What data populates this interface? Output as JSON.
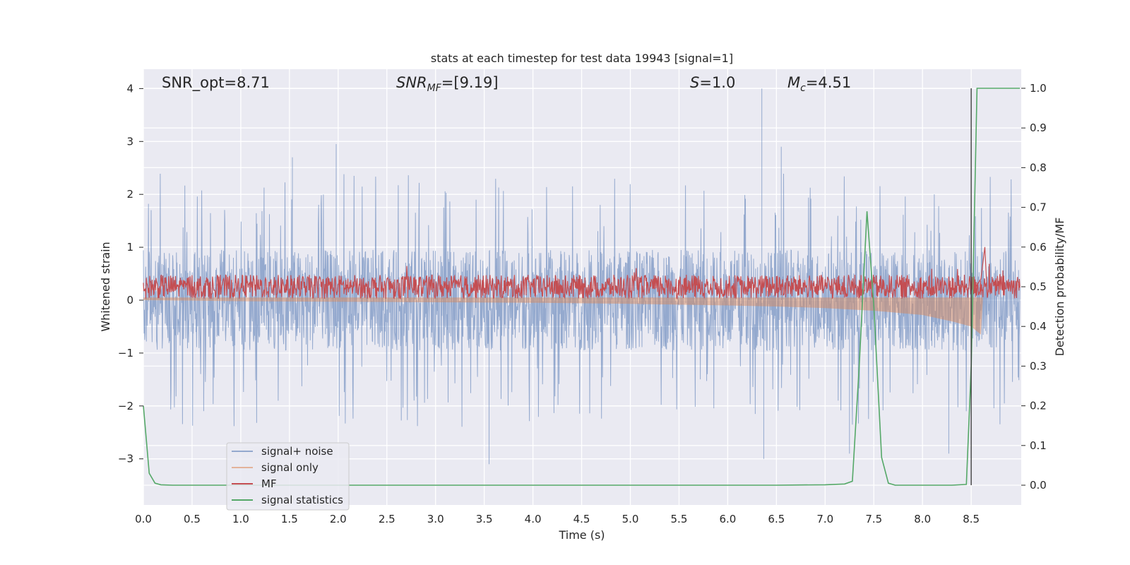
{
  "chart_data": {
    "type": "line",
    "title": "stats at each timestep for test data 19943 [signal=1]",
    "xlabel": "Time (s)",
    "ylabel_left": "Whitened strain",
    "ylabel_right": "Detection probability/MF",
    "xlim": [
      0,
      9
    ],
    "ylim_left": [
      -3.85,
      4.35
    ],
    "ylim_right": [
      -0.05,
      1.04
    ],
    "x_ticks": [
      "0.0",
      "0.5",
      "1.0",
      "1.5",
      "2.0",
      "2.5",
      "3.0",
      "3.5",
      "4.0",
      "4.5",
      "5.0",
      "5.5",
      "6.0",
      "6.5",
      "7.0",
      "7.5",
      "8.0",
      "8.5"
    ],
    "x_tick_values": [
      0,
      0.5,
      1,
      1.5,
      2,
      2.5,
      3,
      3.5,
      4,
      4.5,
      5,
      5.5,
      6,
      6.5,
      7,
      7.5,
      8,
      8.5
    ],
    "y_ticks_left": [
      "4",
      "3",
      "2",
      "1",
      "0",
      "−1",
      "−2",
      "−3"
    ],
    "y_tick_values_left": [
      4,
      3,
      2,
      1,
      0,
      -1,
      -2,
      -3
    ],
    "y_ticks_right": [
      "1.0",
      "0.9",
      "0.8",
      "0.7",
      "0.6",
      "0.5",
      "0.4",
      "0.3",
      "0.2",
      "0.1",
      "0.0"
    ],
    "y_tick_values_right": [
      1.0,
      0.9,
      0.8,
      0.7,
      0.6,
      0.5,
      0.4,
      0.3,
      0.2,
      0.1,
      0.0
    ],
    "grid": true,
    "legend_position": "lower-left",
    "annotations": {
      "snr_opt": "SNR_opt=8.71",
      "snr_mf_main": "SNR",
      "snr_mf_sub": "MF",
      "snr_mf_rest": "=[9.19]",
      "s_main": "S",
      "s_rest": "=1.0",
      "mc_main": "M",
      "mc_sub": "c",
      "mc_rest": "=4.51"
    },
    "series": [
      {
        "name": "signal+ noise",
        "color": "#4c72b0",
        "axis": "left",
        "description_envelope": {
          "typical_max": 1.4,
          "typical_min": -1.4,
          "peak_max": 4.0,
          "peak_min": -3.1
        },
        "peaks": [
          [
            6.35,
            4.0
          ],
          [
            1.98,
            2.95
          ],
          [
            6.55,
            2.9
          ],
          [
            1.53,
            2.7
          ],
          [
            3.55,
            -3.1
          ],
          [
            6.37,
            -3.0
          ],
          [
            7.25,
            -2.9
          ],
          [
            8.27,
            -2.9
          ]
        ]
      },
      {
        "name": "signal only",
        "color": "#dd8452",
        "axis": "left",
        "envelope": [
          [
            0,
            0.0
          ],
          [
            1,
            -0.02
          ],
          [
            2,
            -0.03
          ],
          [
            3,
            -0.04
          ],
          [
            4,
            -0.05
          ],
          [
            5,
            -0.07
          ],
          [
            6,
            -0.1
          ],
          [
            6.5,
            -0.12
          ],
          [
            7,
            -0.15
          ],
          [
            7.5,
            -0.2
          ],
          [
            8,
            -0.28
          ],
          [
            8.3,
            -0.4
          ],
          [
            8.5,
            -0.5
          ],
          [
            8.6,
            -0.65
          ],
          [
            8.62,
            0.0
          ]
        ]
      },
      {
        "name": "MF",
        "color": "#c44e52",
        "axis": "right",
        "baseline": 0.5,
        "band": 0.03,
        "points": [
          [
            8.55,
            0.5
          ],
          [
            8.6,
            0.52
          ],
          [
            8.64,
            0.6
          ],
          [
            8.66,
            0.5
          ]
        ]
      },
      {
        "name": "signal statistics",
        "color": "#55a868",
        "axis": "right",
        "x": [
          0.0,
          0.06,
          0.12,
          0.18,
          0.3,
          0.5,
          1.0,
          2.0,
          3.0,
          4.0,
          5.0,
          6.0,
          6.5,
          7.0,
          7.2,
          7.28,
          7.35,
          7.43,
          7.5,
          7.58,
          7.65,
          7.72,
          8.0,
          8.3,
          8.45,
          8.5,
          8.56,
          8.6,
          9.0
        ],
        "y": [
          0.2,
          0.03,
          0.005,
          0.001,
          0.0,
          0.0,
          0.0,
          0.0,
          0.0,
          0.0,
          0.0,
          0.0,
          0.0,
          0.001,
          0.003,
          0.01,
          0.3,
          0.69,
          0.45,
          0.07,
          0.005,
          0.0,
          0.0,
          0.0,
          0.002,
          0.3,
          1.0,
          1.0,
          1.0
        ]
      }
    ],
    "vertical_line": {
      "x": 8.5,
      "color": "#333333"
    }
  }
}
